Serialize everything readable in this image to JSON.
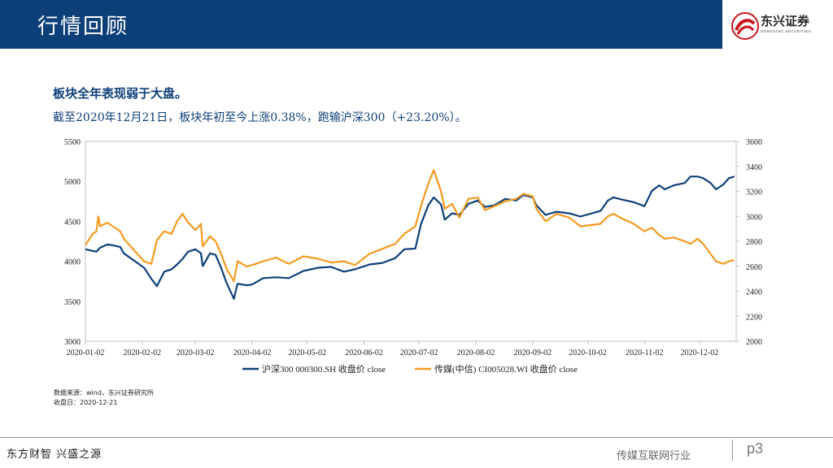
{
  "header": {
    "title": "行情回顾"
  },
  "brand": {
    "name": "东兴证券",
    "sub": "DONGXING SECURITIES"
  },
  "headline": "板块全年表现弱于大盘。",
  "subline": "截至2020年12月21日，板块年初至今上涨0.38%，跑输沪深300（+23.20%）。",
  "source": {
    "line1": "数据来源：wind，东兴证券研究所",
    "line2": "收盘日：2020-12-21"
  },
  "footer": {
    "slogan": "东方财智 兴盛之源",
    "sector": "传媒互联网行业",
    "page": "p3"
  },
  "colors": {
    "header_bg": "#0d3f78",
    "series_hs300": "#0d3f78",
    "series_media": "#f39a21",
    "brand_red": "#c8161d"
  },
  "chart_data": {
    "type": "line",
    "x_ticks": [
      "2020-01-02",
      "2020-02-02",
      "2020-03-02",
      "2020-04-02",
      "2020-05-02",
      "2020-06-02",
      "2020-07-02",
      "2020-08-02",
      "2020-09-02",
      "2020-10-02",
      "2020-11-02",
      "2020-12-02"
    ],
    "y_left": {
      "range": [
        3000,
        5500
      ],
      "ticks": [
        "3000",
        "3500",
        "4000",
        "4500",
        "5000",
        "5500"
      ]
    },
    "y_right": {
      "range": [
        2000,
        3600
      ],
      "ticks": [
        "2000",
        "2200",
        "2400",
        "2600",
        "2800",
        "3000",
        "3200",
        "3400",
        "3600"
      ]
    },
    "legend_position": "bottom",
    "grid": false,
    "series": [
      {
        "name": "沪深300 000300.SH 收盘价 close",
        "axis": "left",
        "color": "#0d3f78",
        "points": [
          [
            "2020-01-02",
            4150
          ],
          [
            "2020-01-06",
            4130
          ],
          [
            "2020-01-08",
            4120
          ],
          [
            "2020-01-10",
            4170
          ],
          [
            "2020-01-14",
            4210
          ],
          [
            "2020-01-17",
            4200
          ],
          [
            "2020-01-21",
            4180
          ],
          [
            "2020-01-23",
            4100
          ],
          [
            "2020-02-03",
            3920
          ],
          [
            "2020-02-07",
            3780
          ],
          [
            "2020-02-10",
            3690
          ],
          [
            "2020-02-14",
            3870
          ],
          [
            "2020-02-18",
            3900
          ],
          [
            "2020-02-21",
            3960
          ],
          [
            "2020-02-24",
            4030
          ],
          [
            "2020-02-27",
            4120
          ],
          [
            "2020-03-02",
            4150
          ],
          [
            "2020-03-05",
            4100
          ],
          [
            "2020-03-06",
            3940
          ],
          [
            "2020-03-10",
            4100
          ],
          [
            "2020-03-13",
            4080
          ],
          [
            "2020-03-16",
            3920
          ],
          [
            "2020-03-19",
            3730
          ],
          [
            "2020-03-23",
            3530
          ],
          [
            "2020-03-25",
            3720
          ],
          [
            "2020-03-30",
            3700
          ],
          [
            "2020-04-02",
            3710
          ],
          [
            "2020-04-08",
            3790
          ],
          [
            "2020-04-15",
            3800
          ],
          [
            "2020-04-22",
            3790
          ],
          [
            "2020-04-30",
            3880
          ],
          [
            "2020-05-08",
            3920
          ],
          [
            "2020-05-15",
            3930
          ],
          [
            "2020-05-22",
            3870
          ],
          [
            "2020-05-28",
            3900
          ],
          [
            "2020-06-05",
            3960
          ],
          [
            "2020-06-12",
            3980
          ],
          [
            "2020-06-19",
            4040
          ],
          [
            "2020-06-24",
            4150
          ],
          [
            "2020-06-30",
            4160
          ],
          [
            "2020-07-03",
            4460
          ],
          [
            "2020-07-07",
            4700
          ],
          [
            "2020-07-10",
            4800
          ],
          [
            "2020-07-14",
            4710
          ],
          [
            "2020-07-16",
            4520
          ],
          [
            "2020-07-20",
            4600
          ],
          [
            "2020-07-24",
            4580
          ],
          [
            "2020-07-29",
            4720
          ],
          [
            "2020-08-03",
            4760
          ],
          [
            "2020-08-07",
            4680
          ],
          [
            "2020-08-12",
            4700
          ],
          [
            "2020-08-18",
            4780
          ],
          [
            "2020-08-24",
            4760
          ],
          [
            "2020-08-28",
            4830
          ],
          [
            "2020-09-02",
            4800
          ],
          [
            "2020-09-04",
            4700
          ],
          [
            "2020-09-09",
            4580
          ],
          [
            "2020-09-15",
            4620
          ],
          [
            "2020-09-22",
            4600
          ],
          [
            "2020-09-28",
            4560
          ],
          [
            "2020-10-09",
            4630
          ],
          [
            "2020-10-13",
            4760
          ],
          [
            "2020-10-16",
            4800
          ],
          [
            "2020-10-21",
            4770
          ],
          [
            "2020-10-27",
            4740
          ],
          [
            "2020-11-02",
            4690
          ],
          [
            "2020-11-06",
            4880
          ],
          [
            "2020-11-10",
            4950
          ],
          [
            "2020-11-13",
            4900
          ],
          [
            "2020-11-18",
            4950
          ],
          [
            "2020-11-24",
            4980
          ],
          [
            "2020-11-27",
            5060
          ],
          [
            "2020-12-01",
            5060
          ],
          [
            "2020-12-04",
            5040
          ],
          [
            "2020-12-08",
            4980
          ],
          [
            "2020-12-11",
            4900
          ],
          [
            "2020-12-15",
            4960
          ],
          [
            "2020-12-18",
            5040
          ],
          [
            "2020-12-21",
            5060
          ]
        ]
      },
      {
        "name": "传媒(中信) CI005028.WI 收盘价 close",
        "axis": "right",
        "color": "#f39a21",
        "points": [
          [
            "2020-01-02",
            2770
          ],
          [
            "2020-01-06",
            2860
          ],
          [
            "2020-01-08",
            2880
          ],
          [
            "2020-01-09",
            3000
          ],
          [
            "2020-01-10",
            2920
          ],
          [
            "2020-01-14",
            2950
          ],
          [
            "2020-01-17",
            2920
          ],
          [
            "2020-01-21",
            2880
          ],
          [
            "2020-01-23",
            2820
          ],
          [
            "2020-02-03",
            2640
          ],
          [
            "2020-02-07",
            2620
          ],
          [
            "2020-02-10",
            2810
          ],
          [
            "2020-02-14",
            2880
          ],
          [
            "2020-02-18",
            2860
          ],
          [
            "2020-02-21",
            2960
          ],
          [
            "2020-02-24",
            3020
          ],
          [
            "2020-02-27",
            2950
          ],
          [
            "2020-03-02",
            2890
          ],
          [
            "2020-03-05",
            2940
          ],
          [
            "2020-03-06",
            2760
          ],
          [
            "2020-03-10",
            2840
          ],
          [
            "2020-03-13",
            2800
          ],
          [
            "2020-03-16",
            2700
          ],
          [
            "2020-03-19",
            2580
          ],
          [
            "2020-03-23",
            2480
          ],
          [
            "2020-03-25",
            2640
          ],
          [
            "2020-03-30",
            2600
          ],
          [
            "2020-04-02",
            2610
          ],
          [
            "2020-04-08",
            2640
          ],
          [
            "2020-04-15",
            2670
          ],
          [
            "2020-04-22",
            2620
          ],
          [
            "2020-04-30",
            2680
          ],
          [
            "2020-05-08",
            2660
          ],
          [
            "2020-05-15",
            2630
          ],
          [
            "2020-05-22",
            2640
          ],
          [
            "2020-05-28",
            2610
          ],
          [
            "2020-06-05",
            2700
          ],
          [
            "2020-06-12",
            2740
          ],
          [
            "2020-06-19",
            2780
          ],
          [
            "2020-06-24",
            2860
          ],
          [
            "2020-06-30",
            2920
          ],
          [
            "2020-07-03",
            3080
          ],
          [
            "2020-07-07",
            3260
          ],
          [
            "2020-07-10",
            3370
          ],
          [
            "2020-07-14",
            3200
          ],
          [
            "2020-07-16",
            3060
          ],
          [
            "2020-07-20",
            3100
          ],
          [
            "2020-07-24",
            2990
          ],
          [
            "2020-07-29",
            3140
          ],
          [
            "2020-08-03",
            3150
          ],
          [
            "2020-08-07",
            3050
          ],
          [
            "2020-08-12",
            3080
          ],
          [
            "2020-08-18",
            3120
          ],
          [
            "2020-08-24",
            3140
          ],
          [
            "2020-08-28",
            3180
          ],
          [
            "2020-09-02",
            3160
          ],
          [
            "2020-09-04",
            3060
          ],
          [
            "2020-09-09",
            2960
          ],
          [
            "2020-09-15",
            3020
          ],
          [
            "2020-09-22",
            2990
          ],
          [
            "2020-09-28",
            2920
          ],
          [
            "2020-10-09",
            2940
          ],
          [
            "2020-10-13",
            3000
          ],
          [
            "2020-10-16",
            3020
          ],
          [
            "2020-10-21",
            2980
          ],
          [
            "2020-10-27",
            2940
          ],
          [
            "2020-11-02",
            2880
          ],
          [
            "2020-11-06",
            2910
          ],
          [
            "2020-11-10",
            2850
          ],
          [
            "2020-11-13",
            2820
          ],
          [
            "2020-11-18",
            2830
          ],
          [
            "2020-11-24",
            2800
          ],
          [
            "2020-11-27",
            2780
          ],
          [
            "2020-12-01",
            2820
          ],
          [
            "2020-12-04",
            2780
          ],
          [
            "2020-12-08",
            2700
          ],
          [
            "2020-12-11",
            2640
          ],
          [
            "2020-12-15",
            2620
          ],
          [
            "2020-12-18",
            2640
          ],
          [
            "2020-12-21",
            2650
          ]
        ]
      }
    ]
  }
}
